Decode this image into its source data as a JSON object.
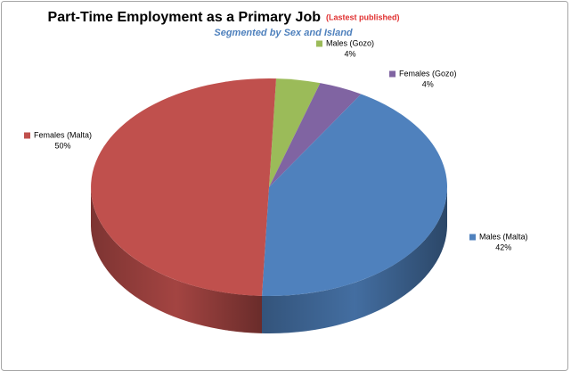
{
  "chart_data": {
    "type": "pie3d",
    "title": "Part-Time Employment as a Primary Job",
    "title_note": "(Lastest published)",
    "subtitle": "Segmented by Sex and Island",
    "categories": [
      "Males (Gozo)",
      "Females (Gozo)",
      "Males (Malta)",
      "Females (Malta)"
    ],
    "values": [
      4,
      4,
      42,
      50
    ],
    "value_labels": [
      "4%",
      "4%",
      "42%",
      "50%"
    ],
    "colors": [
      "#9bbb59",
      "#8064a2",
      "#4f81bd",
      "#c0504d"
    ]
  }
}
